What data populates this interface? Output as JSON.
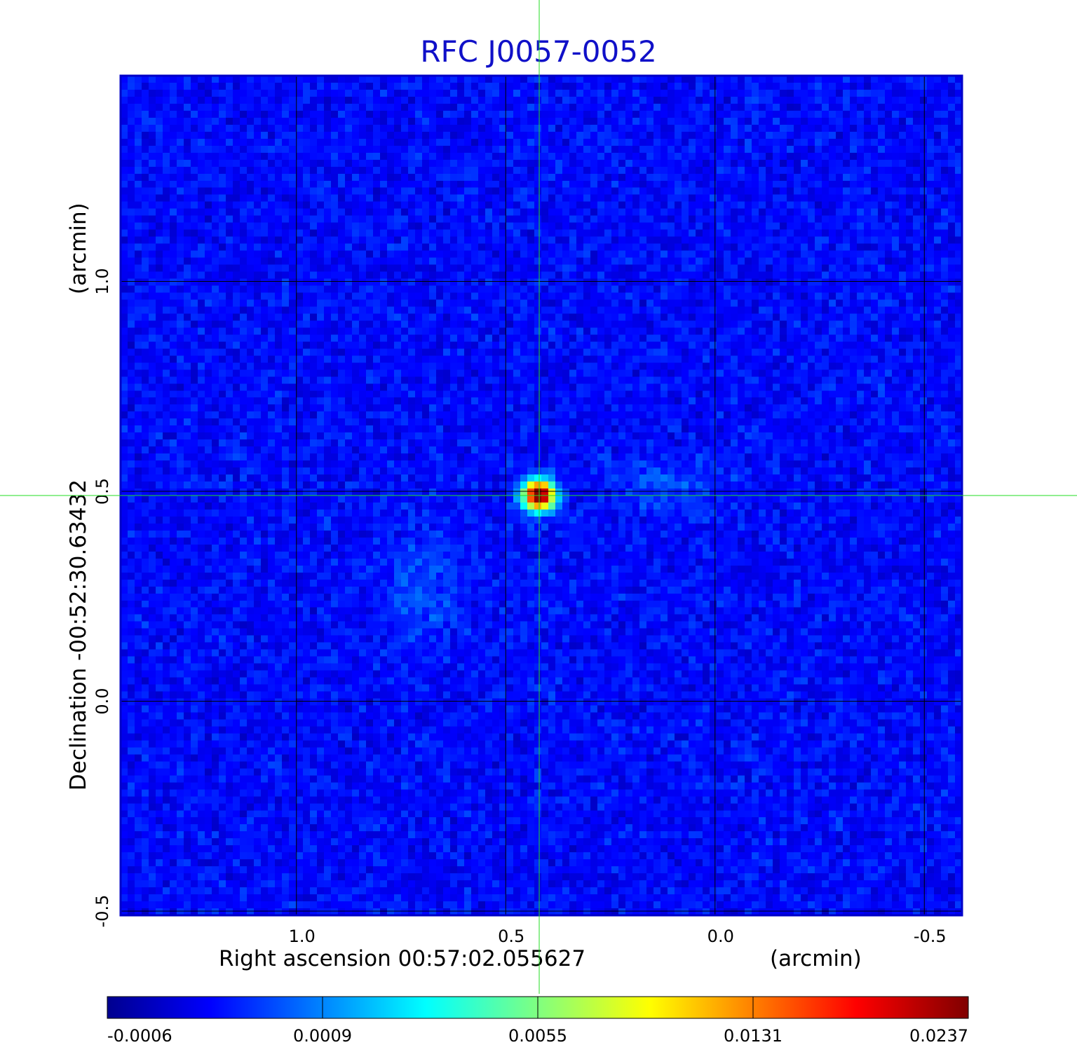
{
  "chart_data": {
    "type": "heatmap",
    "title": "RFC J0057-0052",
    "xlabel": "Right ascension  00:57:02.055627",
    "xunit": "(arcmin)",
    "ylabel": "Declination  -00:52:30.63432",
    "yunit": "(arcmin)",
    "xlim": [
      1.42,
      -0.59
    ],
    "ylim": [
      -0.51,
      1.49
    ],
    "x_ticks": [
      {
        "value": 1.0,
        "label": "1.0"
      },
      {
        "value": 0.5,
        "label": "0.5"
      },
      {
        "value": 0.0,
        "label": "0.0"
      },
      {
        "value": -0.5,
        "label": "-0.5"
      }
    ],
    "y_ticks": [
      {
        "value": 1.0,
        "label": "1.0"
      },
      {
        "value": 0.5,
        "label": "0.5"
      },
      {
        "value": 0.0,
        "label": "0.0"
      },
      {
        "value": -0.5,
        "label": "-0.5"
      }
    ],
    "grid": true,
    "crosshair": {
      "x": 0.42,
      "y": 0.49
    },
    "source_peak": {
      "x": 0.42,
      "y": 0.49,
      "value": 0.0237
    },
    "colormap": "jet",
    "colorbar": {
      "min": -0.0006,
      "max": 0.0237,
      "tick_labels": [
        "-0.0006",
        "0.0009",
        "0.0055",
        "0.0131",
        "0.0237"
      ]
    }
  }
}
